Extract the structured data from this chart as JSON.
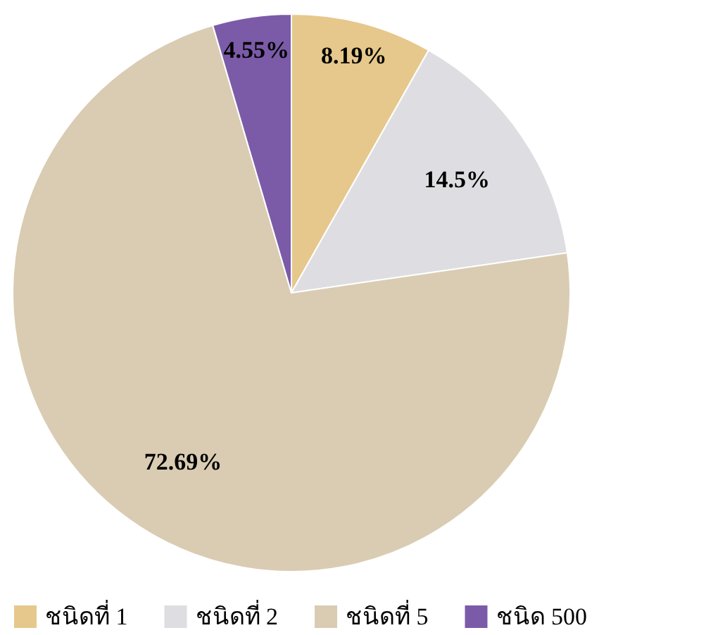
{
  "chart_data": {
    "type": "pie",
    "categories": [
      "ชนิดที่ 1",
      "ชนิดที่ 2",
      "ชนิดที่ 5",
      "ชนิด 500"
    ],
    "values": [
      8.19,
      14.5,
      72.69,
      4.55
    ],
    "colors": [
      "#e6c88c",
      "#dedee2",
      "#d9ccb2",
      "#7b5ba8"
    ],
    "value_labels": [
      "8.19%",
      "14.5%",
      "72.69%",
      "4.55%"
    ],
    "legend": "bottom"
  }
}
